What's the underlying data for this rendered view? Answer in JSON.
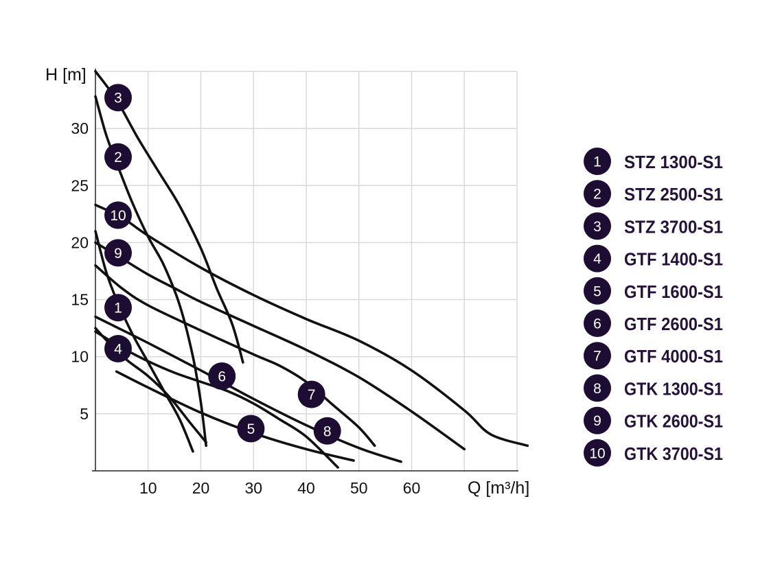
{
  "chart_data": {
    "type": "line",
    "xlabel": "Q [m³/h]",
    "ylabel": "H [m]",
    "xlim": [
      0,
      80
    ],
    "ylim": [
      0,
      35
    ],
    "x_ticks": [
      10,
      20,
      30,
      40,
      50,
      60
    ],
    "y_ticks": [
      5,
      10,
      15,
      20,
      25,
      30
    ],
    "grid": true,
    "legend_placement": "right",
    "colors": {
      "curve": "#111111",
      "badge": "#1e0d33",
      "badge_text": "#ffffff",
      "legend_text": "#24123a",
      "grid": "#d9d9d9"
    },
    "series": [
      {
        "id": "1",
        "name": "STZ 1300-S1",
        "points": [
          [
            0,
            21
          ],
          [
            2,
            17.5
          ],
          [
            4,
            15
          ],
          [
            7,
            12
          ],
          [
            10,
            9.5
          ],
          [
            13,
            7
          ],
          [
            16,
            4.5
          ],
          [
            18.5,
            1.7
          ]
        ],
        "marker": [
          4.3,
          14.3
        ]
      },
      {
        "id": "2",
        "name": "STZ 2500-S1",
        "points": [
          [
            0,
            32.8
          ],
          [
            2,
            29.5
          ],
          [
            4,
            27
          ],
          [
            7,
            23.5
          ],
          [
            10,
            20.5
          ],
          [
            13,
            18
          ],
          [
            16,
            14.5
          ],
          [
            18.5,
            10
          ],
          [
            20,
            6
          ],
          [
            21,
            2.2
          ]
        ],
        "marker": [
          4.3,
          27.5
        ]
      },
      {
        "id": "3",
        "name": "STZ 3700-S1",
        "points": [
          [
            0,
            35
          ],
          [
            4,
            32.5
          ],
          [
            8,
            29.2
          ],
          [
            12,
            26.2
          ],
          [
            16,
            23.2
          ],
          [
            20,
            19.5
          ],
          [
            23,
            16
          ],
          [
            26,
            12.8
          ],
          [
            28,
            9.5
          ]
        ],
        "marker": [
          4.3,
          32.7
        ]
      },
      {
        "id": "4",
        "name": "GTF 1400-S1",
        "points": [
          [
            0,
            12.5
          ],
          [
            3,
            11
          ],
          [
            6,
            9.7
          ],
          [
            10,
            8.3
          ],
          [
            14,
            6.5
          ],
          [
            18,
            4.2
          ],
          [
            21,
            2.5
          ]
        ],
        "marker": [
          4.3,
          10.7
        ]
      },
      {
        "id": "5",
        "name": "GTF 1600-S1",
        "points": [
          [
            4,
            8.7
          ],
          [
            10,
            7.3
          ],
          [
            20,
            5.1
          ],
          [
            30,
            3.3
          ],
          [
            40,
            1.9
          ],
          [
            49,
            0.9
          ]
        ],
        "marker": [
          29.5,
          3.7
        ]
      },
      {
        "id": "6",
        "name": "GTF 2600-S1",
        "points": [
          [
            0,
            12.2
          ],
          [
            5,
            10.8
          ],
          [
            10,
            9.6
          ],
          [
            15,
            8.6
          ],
          [
            20,
            7.8
          ],
          [
            25,
            7
          ],
          [
            30,
            5.9
          ],
          [
            35,
            4.5
          ],
          [
            40,
            3
          ],
          [
            46,
            0.3
          ]
        ],
        "marker": [
          24,
          8.3
        ]
      },
      {
        "id": "7",
        "name": "GTF 4000-S1",
        "points": [
          [
            0,
            18
          ],
          [
            5,
            16
          ],
          [
            10,
            14.5
          ],
          [
            20,
            12.3
          ],
          [
            30,
            10.2
          ],
          [
            35,
            9.2
          ],
          [
            40,
            7.8
          ],
          [
            45,
            5.8
          ],
          [
            50,
            3.8
          ],
          [
            53,
            2.2
          ]
        ],
        "marker": [
          41,
          6.7
        ]
      },
      {
        "id": "8",
        "name": "GTK 1300-S1",
        "points": [
          [
            0,
            13.5
          ],
          [
            10,
            11.2
          ],
          [
            20,
            8.8
          ],
          [
            30,
            6.3
          ],
          [
            40,
            4
          ],
          [
            50,
            2
          ],
          [
            58,
            0.8
          ]
        ],
        "marker": [
          44,
          3.5
        ]
      },
      {
        "id": "9",
        "name": "GTK 2600-S1",
        "points": [
          [
            0,
            20
          ],
          [
            5,
            18.6
          ],
          [
            10,
            17.2
          ],
          [
            15,
            16
          ],
          [
            20,
            14.8
          ],
          [
            30,
            12.7
          ],
          [
            40,
            10.6
          ],
          [
            50,
            8.2
          ],
          [
            60,
            5.2
          ],
          [
            70,
            1.9
          ]
        ],
        "marker": [
          4.3,
          19.1
        ]
      },
      {
        "id": "10",
        "name": "GTK 3700-S1",
        "points": [
          [
            0,
            23.3
          ],
          [
            5,
            22.2
          ],
          [
            10,
            20.6
          ],
          [
            20,
            17.8
          ],
          [
            30,
            15.4
          ],
          [
            40,
            13.3
          ],
          [
            50,
            11.4
          ],
          [
            60,
            8.8
          ],
          [
            70,
            5.3
          ],
          [
            75,
            3.2
          ],
          [
            82,
            2.2
          ]
        ],
        "marker": [
          4.3,
          22.4
        ]
      }
    ]
  }
}
